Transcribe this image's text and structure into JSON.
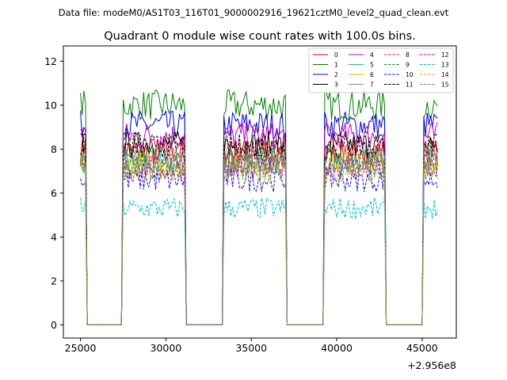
{
  "suptitle": "Data file: modeM0/AS1T03_116T01_9000002916_19621cztM0_level2_quad_clean.evt",
  "chart_data": {
    "type": "line",
    "title": "Quadrant 0 module wise count rates with 100.0s bins.",
    "xlabel": "",
    "ylabel": "",
    "x_offset_label": "+2.956e8",
    "xlim": [
      24000,
      47000
    ],
    "ylim": [
      -0.6,
      12.7
    ],
    "xticks": [
      25000,
      30000,
      35000,
      40000,
      45000
    ],
    "xtick_labels": [
      "25000",
      "30000",
      "35000",
      "40000",
      "45000"
    ],
    "yticks": [
      0,
      2,
      4,
      6,
      8,
      10,
      12
    ],
    "ytick_labels": [
      "0",
      "2",
      "4",
      "6",
      "8",
      "10",
      "12"
    ],
    "grid": false,
    "legend_position": "top-right",
    "bin_seconds": 100,
    "x_start": 25000,
    "x_end": 45900,
    "active_intervals": [
      [
        25000,
        25300
      ],
      [
        27500,
        31100
      ],
      [
        33400,
        37000
      ],
      [
        39300,
        42800
      ],
      [
        45100,
        45900
      ]
    ],
    "series": [
      {
        "name": "0",
        "color": "#d40000",
        "dash": "solid",
        "level": 7.9
      },
      {
        "name": "1",
        "color": "#008000",
        "dash": "solid",
        "level": 10.0
      },
      {
        "name": "2",
        "color": "#0000dd",
        "dash": "solid",
        "level": 9.1
      },
      {
        "name": "3",
        "color": "#000000",
        "dash": "solid",
        "level": 8.2
      },
      {
        "name": "4",
        "color": "#bf00bf",
        "dash": "solid",
        "level": 8.6
      },
      {
        "name": "5",
        "color": "#1fbf9f",
        "dash": "solid",
        "level": 7.6
      },
      {
        "name": "6",
        "color": "#bfbf00",
        "dash": "solid",
        "level": 7.4
      },
      {
        "name": "7",
        "color": "#8c8c8c",
        "dash": "solid",
        "level": 7.5
      },
      {
        "name": "8",
        "color": "#ff2a2a",
        "dash": "dashed",
        "level": 7.8
      },
      {
        "name": "9",
        "color": "#2a8a2a",
        "dash": "dashed",
        "level": 7.2
      },
      {
        "name": "10",
        "color": "#1010dd",
        "dash": "dashed",
        "level": 6.6
      },
      {
        "name": "11",
        "color": "#000000",
        "dash": "dashed",
        "level": 8.1
      },
      {
        "name": "12",
        "color": "#bf00bf",
        "dash": "dashed",
        "level": 7.1
      },
      {
        "name": "13",
        "color": "#00bfbf",
        "dash": "dashed",
        "level": 5.3
      },
      {
        "name": "14",
        "color": "#bfbf00",
        "dash": "dashed",
        "level": 7.0
      },
      {
        "name": "15",
        "color": "#7f7f7f",
        "dash": "dashed",
        "level": 7.3
      }
    ]
  }
}
